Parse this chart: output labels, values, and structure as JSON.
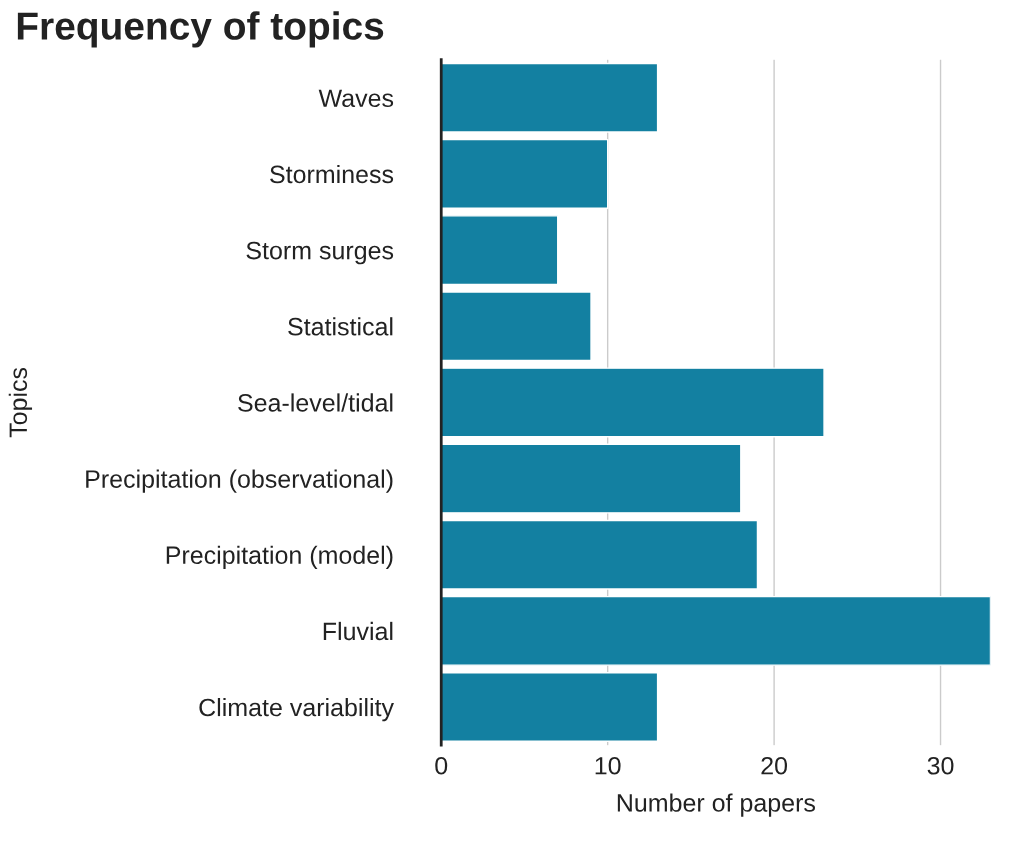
{
  "chart_data": {
    "type": "bar",
    "orientation": "horizontal",
    "title": "Frequency of topics",
    "xlabel": "Number of papers",
    "ylabel": "Topics",
    "categories": [
      "Waves",
      "Storminess",
      "Storm surges",
      "Statistical",
      "Sea-level/tidal",
      "Precipitation (observational)",
      "Precipitation (model)",
      "Fluvial",
      "Climate variability"
    ],
    "values": [
      13,
      10,
      7,
      9,
      23,
      18,
      19,
      33,
      13
    ],
    "color": "#1380a1",
    "xlim": [
      0,
      33
    ],
    "xticks": [
      0,
      10,
      20,
      30
    ],
    "grid": "x"
  }
}
